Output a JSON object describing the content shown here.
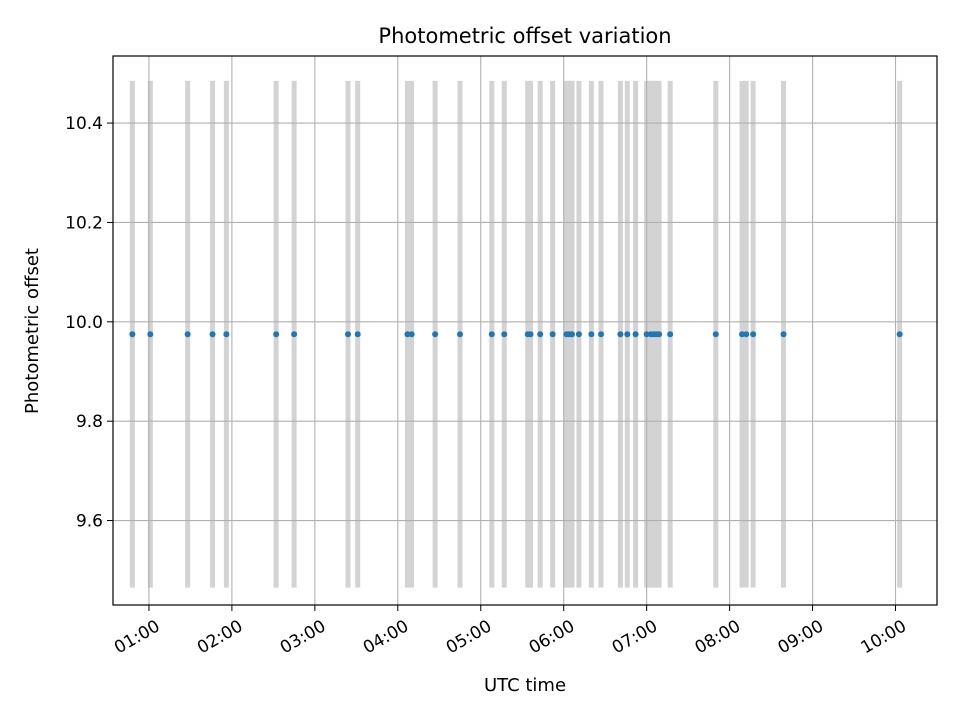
{
  "chart_data": {
    "type": "scatter",
    "title": "Photometric offset variation",
    "xlabel": "UTC time",
    "ylabel": "Photometric offset",
    "xlim": [
      "00:34",
      "10:30"
    ],
    "ylim": [
      9.43,
      10.535
    ],
    "grid": true,
    "x_ticks": [
      "01:00",
      "02:00",
      "03:00",
      "04:00",
      "05:00",
      "06:00",
      "07:00",
      "08:00",
      "09:00",
      "10:00"
    ],
    "y_ticks": [
      "9.6",
      "9.8",
      "10.0",
      "10.2",
      "10.4"
    ],
    "marker_color": "#1f77b4",
    "span_color": "#d3d3d3",
    "span_range_y": [
      9.465,
      10.485
    ],
    "series": [
      {
        "name": "",
        "x": [
          "00:48",
          "01:01",
          "01:28",
          "01:46",
          "01:56",
          "02:32",
          "02:45",
          "03:24",
          "03:31",
          "04:07",
          "04:10",
          "04:27",
          "04:45",
          "05:08",
          "05:17",
          "05:34",
          "05:36",
          "05:43",
          "05:52",
          "06:02",
          "06:04",
          "06:06",
          "06:11",
          "06:20",
          "06:27",
          "06:41",
          "06:46",
          "06:52",
          "07:00",
          "07:03",
          "07:05",
          "07:07",
          "07:09",
          "07:17",
          "07:50",
          "08:09",
          "08:12",
          "08:17",
          "08:39",
          "10:03"
        ],
        "y": [
          9.975,
          9.975,
          9.975,
          9.975,
          9.975,
          9.975,
          9.975,
          9.975,
          9.975,
          9.975,
          9.975,
          9.975,
          9.975,
          9.975,
          9.975,
          9.975,
          9.975,
          9.975,
          9.975,
          9.975,
          9.975,
          9.975,
          9.975,
          9.975,
          9.975,
          9.975,
          9.975,
          9.975,
          9.975,
          9.975,
          9.975,
          9.975,
          9.975,
          9.975,
          9.975,
          9.975,
          9.975,
          9.975,
          9.975,
          9.975
        ]
      }
    ]
  }
}
